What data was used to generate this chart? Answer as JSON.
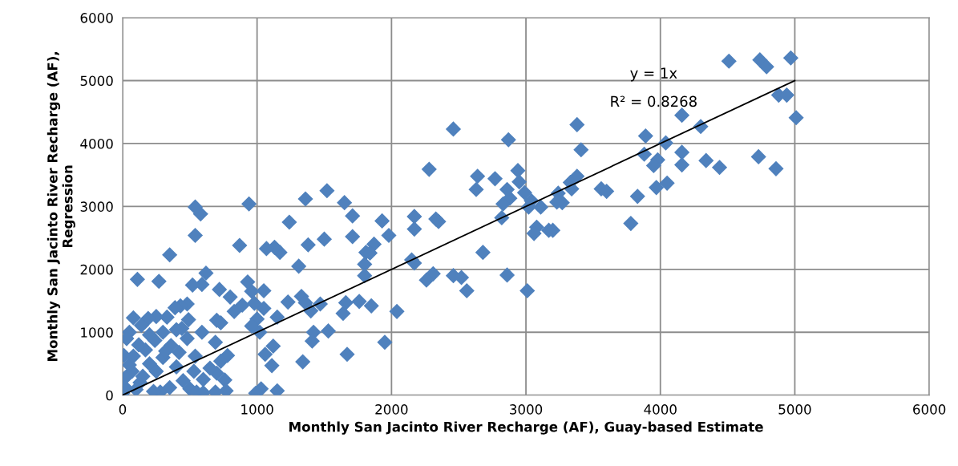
{
  "chart_data": {
    "type": "scatter",
    "xlabel": "Monthly San Jacinto River Recharge (AF), Guay-based Estimate",
    "ylabel": "Monthly San Jacinto River Recharge (AF),\nRegression",
    "xlim": [
      0,
      6000
    ],
    "ylim": [
      0,
      6000
    ],
    "xticks": [
      0,
      1000,
      2000,
      3000,
      4000,
      5000,
      6000
    ],
    "yticks": [
      0,
      1000,
      2000,
      3000,
      4000,
      5000,
      6000
    ],
    "grid": true,
    "legend": false,
    "marker": "diamond",
    "annotations": [
      "y = 1x",
      "R² = 0.8268"
    ],
    "series": [
      {
        "color": "#4f81bd",
        "x": [
          4510,
          4740,
          4790,
          4970,
          4880,
          4940,
          5010,
          4860,
          4730,
          4440,
          4340,
          4160,
          4300,
          4160,
          4160,
          4040,
          4050,
          3980,
          3950,
          3890,
          3880,
          3970,
          3830,
          3780,
          3560,
          3600,
          3380,
          3410,
          3380,
          3330,
          3340,
          3240,
          3270,
          3230,
          3170,
          3200,
          3110,
          3080,
          3060,
          3020,
          3040,
          2950,
          2940,
          2990,
          2880,
          2870,
          2860,
          2820,
          2830,
          2770,
          2640,
          2630,
          2680,
          2460,
          2280,
          2330,
          2350,
          2170,
          2170,
          2150,
          2170,
          2310,
          2260,
          2460,
          2520,
          2560,
          2860,
          3010,
          2040,
          1950,
          1930,
          1980,
          1870,
          1810,
          1840,
          1800,
          1800,
          1760,
          1850,
          1650,
          1710,
          1710,
          1640,
          1660,
          1670,
          1520,
          1500,
          1360,
          1380,
          1470,
          1530,
          1400,
          1420,
          1410,
          1330,
          1360,
          1310,
          1340,
          1240,
          1230,
          1170,
          1130,
          1150,
          1120,
          1110,
          1150,
          1070,
          1050,
          1050,
          1000,
          1020,
          1060,
          1030,
          990,
          960,
          980,
          960,
          930,
          940,
          870,
          890,
          830,
          800,
          780,
          760,
          770,
          720,
          700,
          730,
          690,
          730,
          700,
          690,
          620,
          580,
          540,
          540,
          590,
          520,
          590,
          540,
          530,
          480,
          490,
          430,
          440,
          400,
          350,
          390,
          360,
          270,
          330,
          300,
          250,
          190,
          110,
          140,
          80,
          50,
          30,
          200,
          240,
          250,
          10,
          70,
          20,
          130,
          100,
          0,
          20,
          50,
          170,
          300,
          200,
          120,
          400,
          450,
          500,
          600,
          650,
          350,
          280,
          550,
          150,
          80,
          320,
          420,
          480,
          230,
          600
        ],
        "values": [
          5310,
          5330,
          5220,
          5360,
          4770,
          4770,
          4410,
          3600,
          3790,
          3620,
          3730,
          4450,
          4270,
          3860,
          3660,
          4010,
          3370,
          3740,
          3650,
          4120,
          3830,
          3300,
          3160,
          2730,
          3280,
          3240,
          4300,
          3900,
          3480,
          3380,
          3280,
          3210,
          3060,
          3070,
          2620,
          2620,
          2990,
          2670,
          2570,
          2990,
          3090,
          3390,
          3570,
          3220,
          3130,
          4060,
          3270,
          2820,
          3040,
          3440,
          3480,
          3270,
          2270,
          4230,
          3590,
          2800,
          2760,
          2840,
          2640,
          2150,
          2100,
          1930,
          1830,
          1900,
          1870,
          1660,
          1910,
          1660,
          1330,
          840,
          2770,
          2540,
          2400,
          2270,
          2260,
          2080,
          1900,
          1490,
          1420,
          3060,
          2850,
          2520,
          1300,
          1470,
          650,
          3250,
          2480,
          3120,
          2390,
          1450,
          1020,
          1340,
          1000,
          860,
          1570,
          1470,
          2050,
          530,
          2750,
          1480,
          2270,
          2350,
          1240,
          780,
          470,
          70,
          2330,
          1660,
          1380,
          1210,
          1000,
          650,
          100,
          30,
          1650,
          1460,
          1100,
          1800,
          3040,
          2380,
          1430,
          1330,
          1560,
          630,
          240,
          70,
          1680,
          1190,
          1150,
          840,
          540,
          350,
          50,
          1940,
          2880,
          2990,
          2540,
          1760,
          1750,
          1000,
          620,
          380,
          1450,
          1200,
          1420,
          1060,
          1040,
          2230,
          1390,
          790,
          1810,
          1240,
          600,
          1250,
          1220,
          1840,
          1110,
          1230,
          1000,
          900,
          500,
          870,
          380,
          630,
          380,
          280,
          200,
          90,
          30,
          120,
          480,
          720,
          1000,
          960,
          800,
          450,
          230,
          100,
          250,
          430,
          120,
          50,
          50,
          300,
          620,
          700,
          680,
          900,
          60,
          40
        ]
      },
      {
        "type": "line",
        "color": "#000000",
        "marker": "none",
        "x": [
          0,
          5000
        ],
        "values": [
          0,
          5000
        ]
      }
    ]
  }
}
